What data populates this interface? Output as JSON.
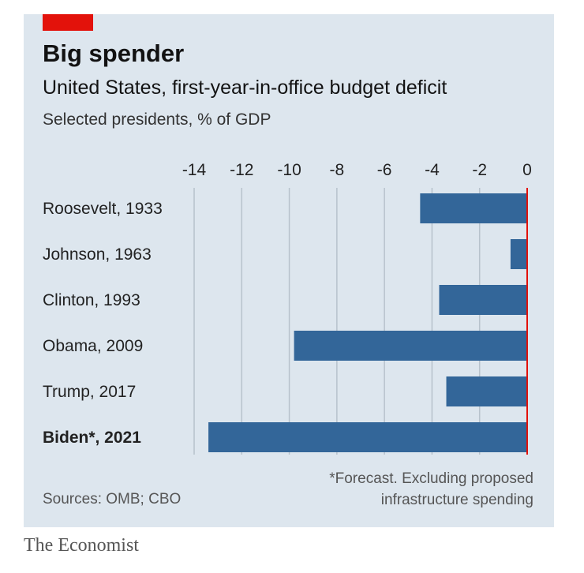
{
  "header": {
    "title": "Big spender",
    "subtitle": "United States, first-year-in-office budget deficit",
    "subsubtitle": "Selected presidents, % of GDP"
  },
  "footer": {
    "footnote_line1": "*Forecast. Excluding proposed",
    "footnote_line2": "infrastructure spending",
    "source": "Sources: OMB; CBO",
    "brand": "The Economist"
  },
  "colors": {
    "bar": "#336699",
    "zero_line": "#e3120b",
    "panel": "#dde6ee",
    "grid": "#b7c2cc"
  },
  "chart_data": {
    "type": "bar",
    "orientation": "horizontal",
    "categories": [
      "Roosevelt, 1933",
      "Johnson, 1963",
      "Clinton, 1993",
      "Obama, 2009",
      "Trump, 2017",
      "Biden*, 2021"
    ],
    "highlighted_category": "Biden*, 2021",
    "values": [
      -4.5,
      -0.7,
      -3.7,
      -9.8,
      -3.4,
      -13.4
    ],
    "xlim": [
      -14,
      0
    ],
    "xticks": [
      -14,
      -12,
      -10,
      -8,
      -6,
      -4,
      -2,
      0
    ],
    "tick_labels": [
      "-14",
      "-12",
      "-10",
      "-8",
      "-6",
      "-4",
      "-2",
      "0"
    ],
    "axis_position": "top",
    "grid": true
  }
}
